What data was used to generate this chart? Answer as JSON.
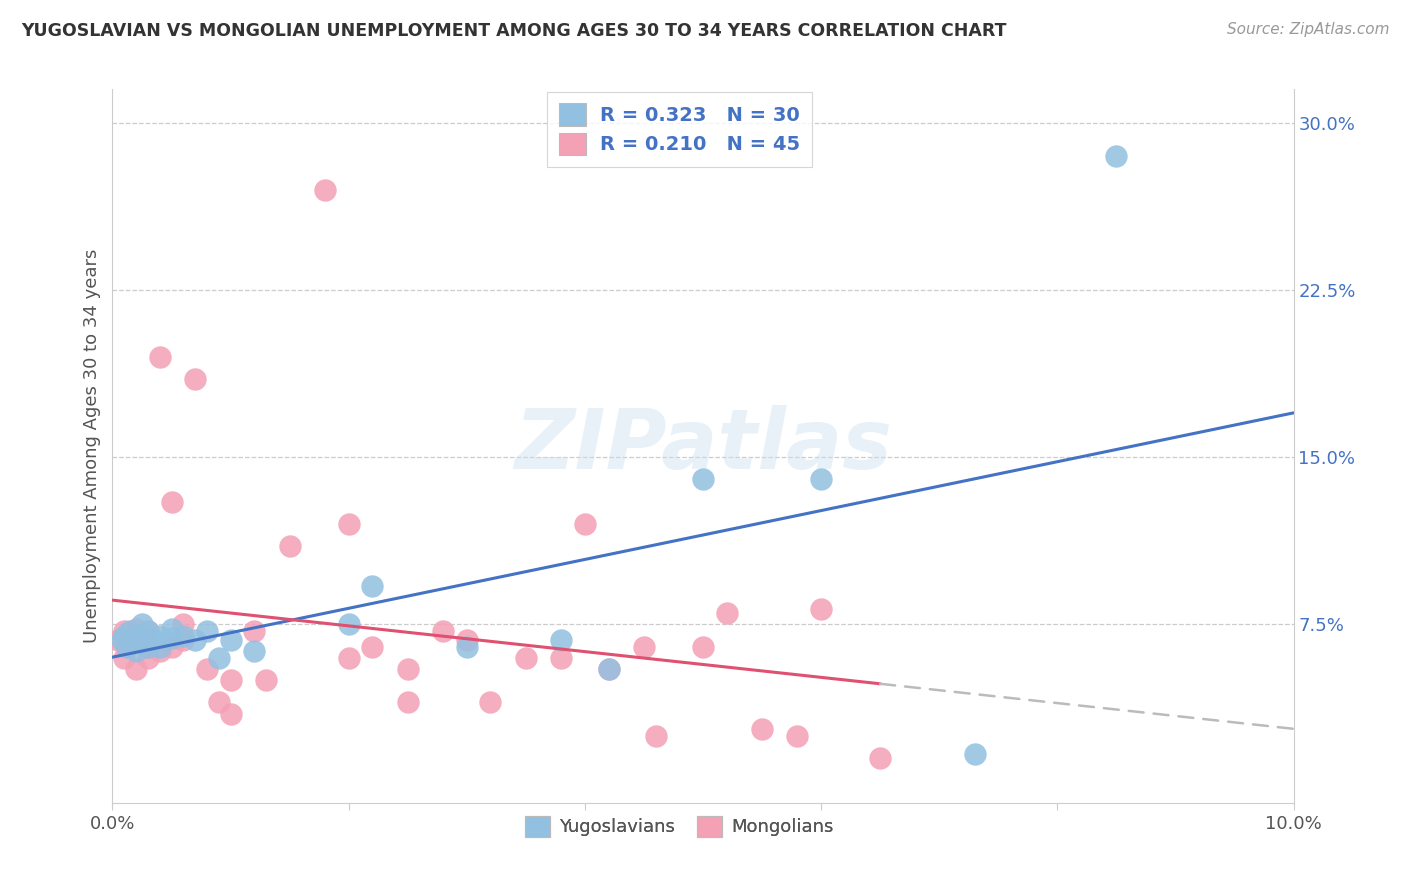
{
  "title": "YUGOSLAVIAN VS MONGOLIAN UNEMPLOYMENT AMONG AGES 30 TO 34 YEARS CORRELATION CHART",
  "source": "Source: ZipAtlas.com",
  "ylabel": "Unemployment Among Ages 30 to 34 years",
  "xlim": [
    0.0,
    0.1
  ],
  "ylim": [
    -0.005,
    0.315
  ],
  "blue_color": "#92c0e0",
  "pink_color": "#f4a0b5",
  "blue_line_color": "#4472c4",
  "pink_line_color": "#e05070",
  "legend_R_blue": "0.323",
  "legend_N_blue": "30",
  "legend_R_pink": "0.210",
  "legend_N_pink": "45",
  "watermark_text": "ZIPatlas",
  "yugo_x": [
    0.0008,
    0.001,
    0.0012,
    0.0015,
    0.002,
    0.002,
    0.0022,
    0.0025,
    0.003,
    0.003,
    0.0035,
    0.004,
    0.004,
    0.005,
    0.005,
    0.006,
    0.007,
    0.008,
    0.009,
    0.01,
    0.012,
    0.02,
    0.022,
    0.03,
    0.038,
    0.042,
    0.05,
    0.06,
    0.073,
    0.085
  ],
  "yugo_y": [
    0.068,
    0.07,
    0.065,
    0.072,
    0.063,
    0.07,
    0.068,
    0.075,
    0.065,
    0.072,
    0.068,
    0.07,
    0.065,
    0.069,
    0.073,
    0.07,
    0.068,
    0.072,
    0.06,
    0.068,
    0.063,
    0.075,
    0.092,
    0.065,
    0.068,
    0.055,
    0.14,
    0.14,
    0.017,
    0.285
  ],
  "mongo_x": [
    0.0005,
    0.001,
    0.001,
    0.0012,
    0.0015,
    0.002,
    0.002,
    0.003,
    0.003,
    0.003,
    0.004,
    0.004,
    0.005,
    0.005,
    0.006,
    0.006,
    0.007,
    0.008,
    0.009,
    0.01,
    0.01,
    0.012,
    0.013,
    0.015,
    0.018,
    0.02,
    0.02,
    0.022,
    0.025,
    0.025,
    0.028,
    0.03,
    0.032,
    0.035,
    0.038,
    0.04,
    0.042,
    0.045,
    0.046,
    0.05,
    0.052,
    0.055,
    0.058,
    0.06,
    0.065
  ],
  "mongo_y": [
    0.068,
    0.06,
    0.072,
    0.065,
    0.07,
    0.055,
    0.073,
    0.06,
    0.065,
    0.072,
    0.195,
    0.063,
    0.065,
    0.13,
    0.068,
    0.075,
    0.185,
    0.055,
    0.04,
    0.035,
    0.05,
    0.072,
    0.05,
    0.11,
    0.27,
    0.06,
    0.12,
    0.065,
    0.055,
    0.04,
    0.072,
    0.068,
    0.04,
    0.06,
    0.06,
    0.12,
    0.055,
    0.065,
    0.025,
    0.065,
    0.08,
    0.028,
    0.025,
    0.082,
    0.015
  ]
}
